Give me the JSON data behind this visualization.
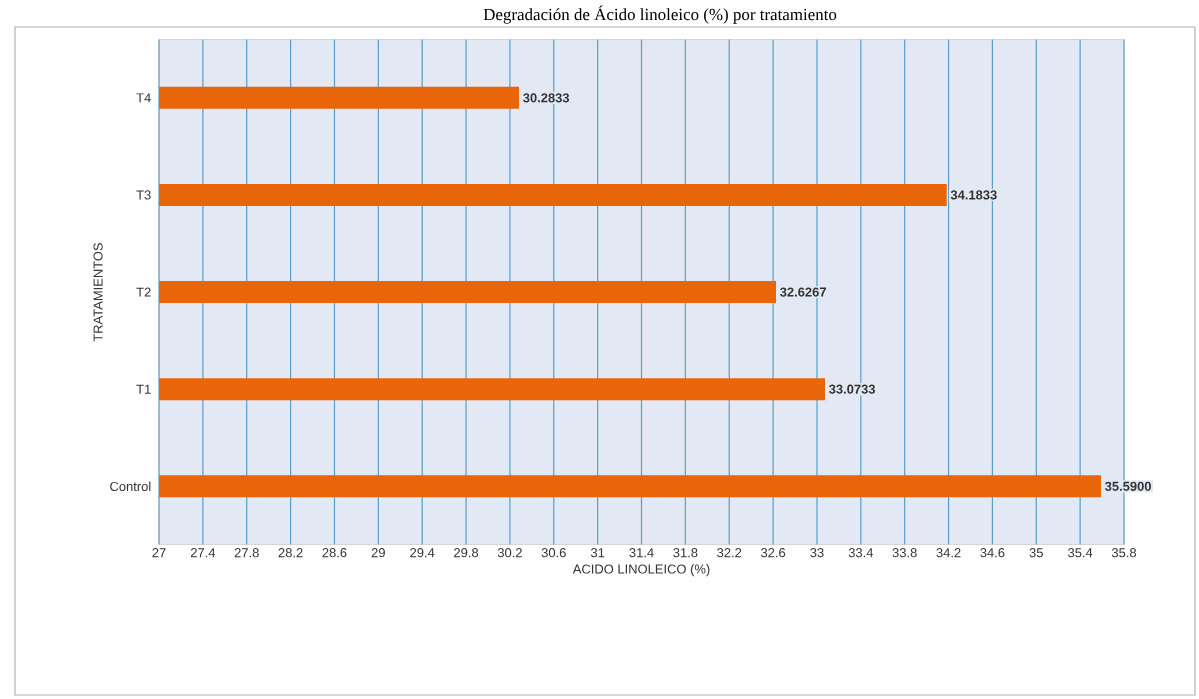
{
  "chart_data": {
    "type": "bar",
    "orientation": "horizontal",
    "title": "Degradación de Ácido linoleico (%) por tratamiento",
    "xlabel": "ACIDO LINOLEICO (%)",
    "ylabel": "TRATAMIENTOS",
    "categories": [
      "T4",
      "T3",
      "T2",
      "T1",
      "Control"
    ],
    "values": [
      30.2833,
      34.1833,
      32.6267,
      33.0733,
      35.59
    ],
    "value_labels": [
      "30.2833",
      "34.1833",
      "32.6267",
      "33.0733",
      "35.5900"
    ],
    "color": "#e8650a",
    "xlim": [
      27,
      35.8
    ],
    "xticks": [
      27,
      27.4,
      27.8,
      28.2,
      28.6,
      29,
      29.4,
      29.8,
      30.2,
      30.6,
      31,
      31.4,
      31.8,
      32.2,
      32.6,
      33,
      33.4,
      33.8,
      34.2,
      34.6,
      35,
      35.4,
      35.8
    ],
    "grid": "x"
  }
}
